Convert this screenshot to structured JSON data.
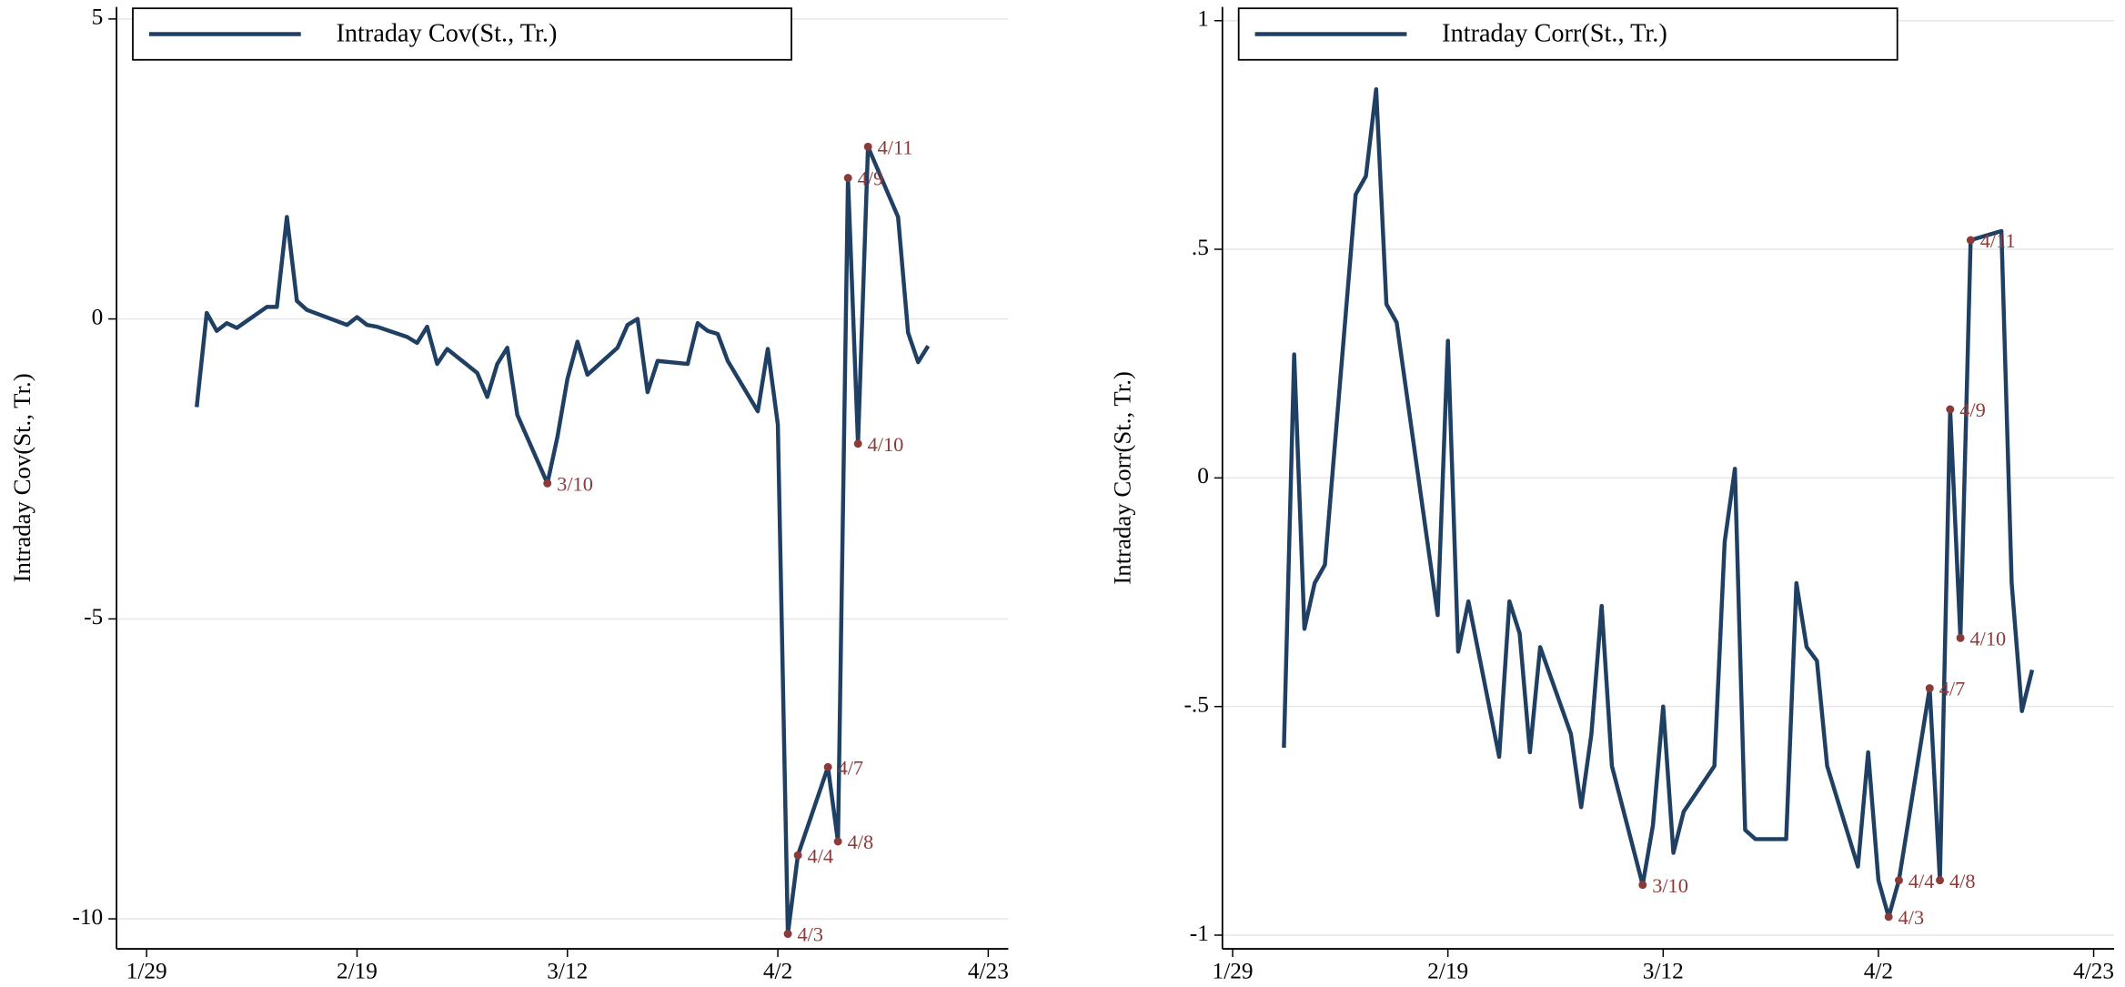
{
  "chart_data": [
    {
      "type": "line",
      "ylabel": "Intraday Cov(St., Tr.)",
      "x": [
        "2/3",
        "2/4",
        "2/5",
        "2/6",
        "2/7",
        "2/10",
        "2/11",
        "2/12",
        "2/13",
        "2/14",
        "2/18",
        "2/19",
        "2/20",
        "2/21",
        "2/24",
        "2/25",
        "2/26",
        "2/27",
        "2/28",
        "3/3",
        "3/4",
        "3/5",
        "3/6",
        "3/7",
        "3/10",
        "3/11",
        "3/12",
        "3/13",
        "3/14",
        "3/17",
        "3/18",
        "3/19",
        "3/20",
        "3/21",
        "3/24",
        "3/25",
        "3/26",
        "3/27",
        "3/28",
        "3/31",
        "4/1",
        "4/2",
        "4/3",
        "4/4",
        "4/7",
        "4/8",
        "4/9",
        "4/10",
        "4/11",
        "4/14",
        "4/15",
        "4/16",
        "4/17"
      ],
      "series": [
        {
          "name": "Intraday Cov(St., Tr.)",
          "color": "#1f3f63",
          "values": [
            -1.47,
            0.1,
            -0.2,
            -0.07,
            -0.15,
            0.2,
            0.2,
            1.7,
            0.3,
            0.15,
            -0.1,
            0.03,
            -0.1,
            -0.13,
            -0.3,
            -0.4,
            -0.13,
            -0.75,
            -0.5,
            -0.9,
            -1.3,
            -0.75,
            -0.48,
            -1.6,
            -2.74,
            -1.97,
            -1.0,
            -0.38,
            -0.93,
            -0.48,
            -0.1,
            0.0,
            -1.22,
            -0.7,
            -0.75,
            -0.07,
            -0.2,
            -0.25,
            -0.7,
            -1.54,
            -0.5,
            -1.76,
            -10.25,
            -8.94,
            -7.47,
            -8.71,
            2.35,
            -2.08,
            2.87,
            1.7,
            -0.23,
            -0.72,
            -0.45
          ],
          "point_labels": [
            null,
            null,
            null,
            null,
            null,
            null,
            null,
            null,
            null,
            null,
            null,
            null,
            null,
            null,
            null,
            null,
            null,
            null,
            null,
            null,
            null,
            null,
            null,
            null,
            "3/10",
            null,
            null,
            null,
            null,
            null,
            null,
            null,
            null,
            null,
            null,
            null,
            null,
            null,
            null,
            null,
            null,
            null,
            "4/3",
            "4/4",
            "4/7",
            "4/8",
            "4/9",
            "4/10",
            "4/11",
            null,
            null,
            null,
            null
          ],
          "label_color": "#8b3a3a"
        }
      ],
      "xlim": [
        "1/26",
        "4/25"
      ],
      "xticks": [
        "1/29",
        "2/19",
        "3/12",
        "4/2",
        "4/23"
      ],
      "ylim": [
        -10.5,
        5.2
      ],
      "yticks": [
        5,
        0,
        -5,
        -10
      ],
      "grid": true,
      "legend": "top-left"
    },
    {
      "type": "line",
      "ylabel": "Intraday Corr(St., Tr.)",
      "x": [
        "2/3",
        "2/4",
        "2/5",
        "2/6",
        "2/7",
        "2/10",
        "2/11",
        "2/12",
        "2/13",
        "2/14",
        "2/18",
        "2/19",
        "2/20",
        "2/21",
        "2/24",
        "2/25",
        "2/26",
        "2/27",
        "2/28",
        "3/3",
        "3/4",
        "3/5",
        "3/6",
        "3/7",
        "3/10",
        "3/11",
        "3/12",
        "3/13",
        "3/14",
        "3/17",
        "3/18",
        "3/19",
        "3/20",
        "3/21",
        "3/24",
        "3/25",
        "3/26",
        "3/27",
        "3/28",
        "3/31",
        "4/1",
        "4/2",
        "4/3",
        "4/4",
        "4/7",
        "4/8",
        "4/9",
        "4/10",
        "4/11",
        "4/14",
        "4/15",
        "4/16",
        "4/17"
      ],
      "series": [
        {
          "name": "Intraday Corr(St., Tr.)",
          "color": "#1f3f63",
          "values": [
            -0.59,
            0.27,
            -0.33,
            -0.23,
            -0.19,
            0.62,
            0.66,
            0.85,
            0.38,
            0.34,
            -0.3,
            0.3,
            -0.38,
            -0.27,
            -0.61,
            -0.27,
            -0.34,
            -0.6,
            -0.37,
            -0.56,
            -0.72,
            -0.56,
            -0.28,
            -0.63,
            -0.89,
            -0.76,
            -0.5,
            -0.82,
            -0.73,
            -0.63,
            -0.14,
            0.02,
            -0.77,
            -0.79,
            -0.79,
            -0.23,
            -0.37,
            -0.4,
            -0.63,
            -0.85,
            -0.6,
            -0.88,
            -0.96,
            -0.88,
            -0.46,
            -0.88,
            0.15,
            -0.35,
            0.52,
            0.54,
            -0.23,
            -0.51,
            -0.42
          ],
          "point_labels": [
            null,
            null,
            null,
            null,
            null,
            null,
            null,
            null,
            null,
            null,
            null,
            null,
            null,
            null,
            null,
            null,
            null,
            null,
            null,
            null,
            null,
            null,
            null,
            null,
            "3/10",
            null,
            null,
            null,
            null,
            null,
            null,
            null,
            null,
            null,
            null,
            null,
            null,
            null,
            null,
            null,
            null,
            null,
            "4/3",
            "4/4",
            "4/7",
            "4/8",
            "4/9",
            "4/10",
            "4/11",
            null,
            null,
            null,
            null
          ],
          "label_color": "#8b3a3a"
        }
      ],
      "xlim": [
        "1/28",
        "4/25"
      ],
      "xticks": [
        "1/29",
        "2/19",
        "3/12",
        "4/2",
        "4/23"
      ],
      "ylim": [
        -1.03,
        1.03
      ],
      "yticks": [
        1,
        {
          "value": 0.5,
          "label": ".5"
        },
        0,
        {
          "value": -0.5,
          "label": "-.5"
        },
        -1
      ],
      "grid": true,
      "legend": "top-left"
    }
  ]
}
